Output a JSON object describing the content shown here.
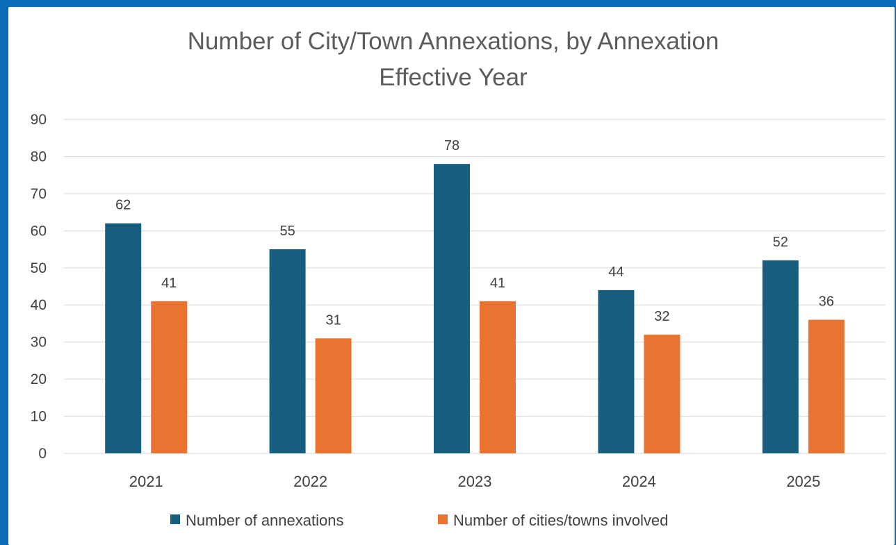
{
  "chart_data": {
    "type": "bar",
    "title": "Number of City/Town Annexations, by Annexation Effective Year",
    "title_lines": [
      "Number of City/Town Annexations, by Annexation",
      "Effective Year"
    ],
    "categories": [
      "2021",
      "2022",
      "2023",
      "2024",
      "2025"
    ],
    "series": [
      {
        "name": "Number of annexations",
        "values": [
          62,
          55,
          78,
          44,
          52
        ],
        "color": "#175e7e"
      },
      {
        "name": "Number of cities/towns involved",
        "values": [
          41,
          31,
          41,
          32,
          36
        ],
        "color": "#e97331"
      }
    ],
    "ylim": [
      0,
      90
    ],
    "yticks": [
      0,
      10,
      20,
      30,
      40,
      50,
      60,
      70,
      80,
      90
    ],
    "grid": true,
    "legend_position": "bottom",
    "data_labels": true
  },
  "colors": {
    "frame_border": "#0a6bb8",
    "background": "#ffffff"
  }
}
